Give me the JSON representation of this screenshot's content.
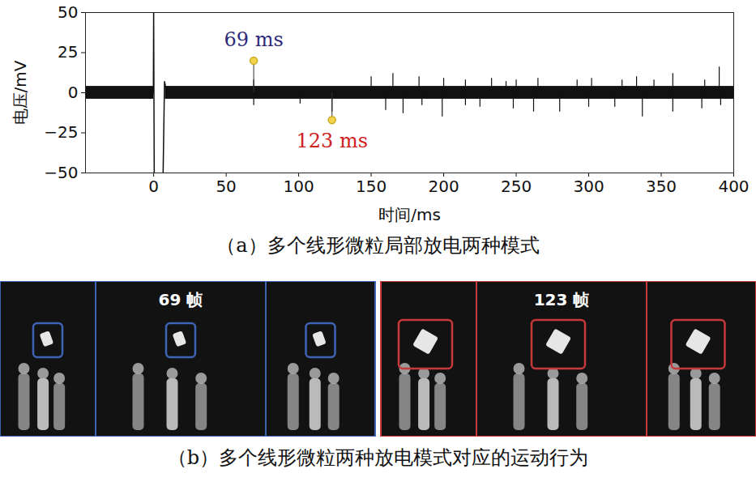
{
  "chart_data": {
    "type": "line",
    "caption": "（a）多个线形微粒局部放电两种模式",
    "xlabel": "时间/ms",
    "ylabel": "电压/mV",
    "xlim": [
      -47,
      400
    ],
    "xticks": [
      0,
      50,
      100,
      150,
      200,
      250,
      300,
      350,
      400
    ],
    "ylim": [
      -50,
      50
    ],
    "yticks": [
      -50,
      -25,
      0,
      25,
      50
    ],
    "grid": false,
    "color": "#111111",
    "trace": {
      "x": [
        -47,
        -0.2,
        0,
        0.4,
        6.5,
        7.5,
        9,
        400
      ],
      "values": [
        0,
        0,
        52,
        -52,
        -52,
        7,
        0,
        0
      ]
    },
    "noise_band": [
      {
        "x": [
          -47,
          0
        ],
        "lower": -4,
        "upper": 4
      },
      {
        "x": [
          8,
          400
        ],
        "lower": -4,
        "upper": 4
      }
    ],
    "spikes": {
      "x": [
        69,
        69,
        101,
        123,
        150,
        160,
        165,
        172,
        183,
        185,
        199,
        200,
        215,
        215,
        225,
        233,
        243,
        248,
        250,
        262,
        265,
        280,
        292,
        300,
        302,
        318,
        323,
        333,
        337,
        345,
        358,
        358,
        378,
        380,
        390,
        391
      ],
      "values": [
        8,
        -8,
        -7,
        -12,
        10,
        -11,
        12,
        -13,
        10,
        -8,
        -15,
        9,
        8,
        -8,
        -9,
        9,
        7,
        -10,
        8,
        -12,
        9,
        -12,
        8,
        -9,
        9,
        -9,
        8,
        10,
        -15,
        8,
        12,
        -12,
        -10,
        8,
        16,
        -8
      ]
    },
    "annotations": [
      {
        "text": "69 ms",
        "x": 69,
        "y": 20,
        "color": "#2e2a7a"
      },
      {
        "text": "123 ms",
        "x": 123,
        "y": -17,
        "color": "#d0201c"
      }
    ]
  },
  "panel_b": {
    "caption": "（b）多个线形微粒两种放电模式对应的运动行为",
    "groups": [
      {
        "label": "69 帧",
        "color": "#3f63b5"
      },
      {
        "label": "123 帧",
        "color": "#c8393a"
      }
    ]
  }
}
